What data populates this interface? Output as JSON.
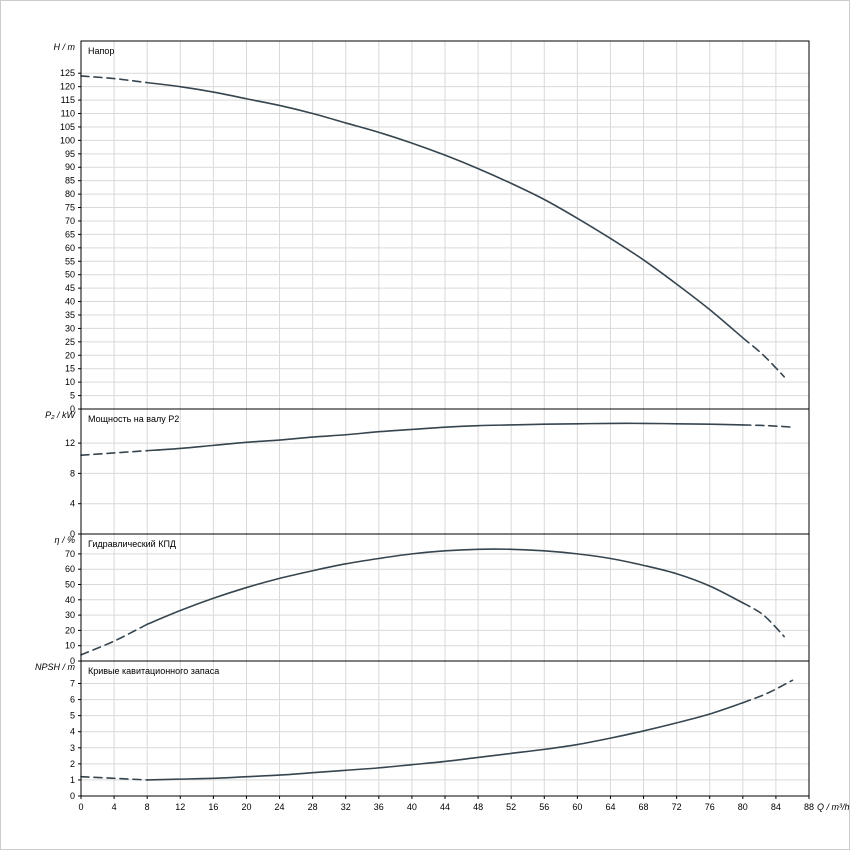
{
  "window": {
    "background": "#ffffff",
    "border_color": "#cccccc"
  },
  "chart_style": {
    "curve_color": "#36454f",
    "grid_color": "#d9d9d9",
    "frame_color": "#000000",
    "text_color": "#000000",
    "font_size": 9
  },
  "x_axis": {
    "label": "Q / m³/h",
    "min": 0,
    "max": 88,
    "tick_step": 4
  },
  "chart_data": [
    {
      "type": "line",
      "panel": "head",
      "title": "Напор",
      "ylabel": "H / m",
      "xlabel": "Q / m³/h",
      "xlim": [
        0,
        88
      ],
      "ylim": [
        0,
        137
      ],
      "yticks": {
        "step": 5,
        "max": 125
      },
      "grid": true,
      "series": [
        {
          "name": "head-curve-dashed-left",
          "style": "dashed",
          "points": [
            [
              0,
              124
            ],
            [
              4,
              123
            ],
            [
              8,
              121.5
            ]
          ]
        },
        {
          "name": "head-curve-solid",
          "style": "solid",
          "points": [
            [
              8,
              121.5
            ],
            [
              12,
              120
            ],
            [
              16,
              118
            ],
            [
              20,
              115.5
            ],
            [
              24,
              113
            ],
            [
              28,
              110
            ],
            [
              32,
              106.5
            ],
            [
              36,
              103
            ],
            [
              40,
              99
            ],
            [
              44,
              94.5
            ],
            [
              48,
              89.5
            ],
            [
              52,
              84
            ],
            [
              56,
              78
            ],
            [
              60,
              71
            ],
            [
              64,
              63.5
            ],
            [
              68,
              55.5
            ],
            [
              72,
              46.5
            ],
            [
              76,
              37
            ],
            [
              80,
              26.5
            ]
          ]
        },
        {
          "name": "head-curve-dashed-right",
          "style": "dashed",
          "points": [
            [
              80,
              26.5
            ],
            [
              82.5,
              20
            ],
            [
              85,
              12
            ]
          ]
        }
      ]
    },
    {
      "type": "line",
      "panel": "shaft-power",
      "title": "Мощность на валу P2",
      "ylabel": "P₂ / kW",
      "xlabel": "Q / m³/h",
      "xlim": [
        0,
        88
      ],
      "ylim": [
        0,
        16.5
      ],
      "yticks": {
        "step": 4,
        "max": 12
      },
      "grid": true,
      "series": [
        {
          "name": "power-curve-dashed-left",
          "style": "dashed",
          "points": [
            [
              0,
              10.4
            ],
            [
              4,
              10.7
            ],
            [
              8,
              11
            ]
          ]
        },
        {
          "name": "power-curve-solid",
          "style": "solid",
          "points": [
            [
              8,
              11
            ],
            [
              12,
              11.3
            ],
            [
              16,
              11.7
            ],
            [
              20,
              12.1
            ],
            [
              24,
              12.4
            ],
            [
              28,
              12.8
            ],
            [
              32,
              13.1
            ],
            [
              36,
              13.5
            ],
            [
              40,
              13.8
            ],
            [
              44,
              14.1
            ],
            [
              48,
              14.3
            ],
            [
              52,
              14.4
            ],
            [
              56,
              14.5
            ],
            [
              60,
              14.55
            ],
            [
              64,
              14.6
            ],
            [
              68,
              14.6
            ],
            [
              72,
              14.55
            ],
            [
              76,
              14.5
            ],
            [
              80,
              14.4
            ]
          ]
        },
        {
          "name": "power-curve-dashed-right",
          "style": "dashed",
          "points": [
            [
              80,
              14.4
            ],
            [
              83,
              14.3
            ],
            [
              86,
              14.1
            ]
          ]
        }
      ]
    },
    {
      "type": "line",
      "panel": "hydraulic-efficiency",
      "title": "Гидравлический КПД",
      "ylabel": "η / %",
      "xlabel": "Q / m³/h",
      "xlim": [
        0,
        88
      ],
      "ylim": [
        0,
        83
      ],
      "yticks": {
        "step": 10,
        "max": 70
      },
      "grid": true,
      "series": [
        {
          "name": "efficiency-curve-dashed-left",
          "style": "dashed",
          "points": [
            [
              0,
              4
            ],
            [
              4,
              13
            ],
            [
              8,
              24
            ]
          ]
        },
        {
          "name": "efficiency-curve-solid",
          "style": "solid",
          "points": [
            [
              8,
              24
            ],
            [
              12,
              33
            ],
            [
              16,
              41
            ],
            [
              20,
              48
            ],
            [
              24,
              54
            ],
            [
              28,
              59
            ],
            [
              32,
              63.5
            ],
            [
              36,
              67
            ],
            [
              40,
              70
            ],
            [
              44,
              72
            ],
            [
              48,
              73
            ],
            [
              52,
              73
            ],
            [
              56,
              72
            ],
            [
              60,
              70
            ],
            [
              64,
              67
            ],
            [
              68,
              62.5
            ],
            [
              72,
              57
            ],
            [
              76,
              49
            ],
            [
              80,
              38
            ]
          ]
        },
        {
          "name": "efficiency-curve-dashed-right",
          "style": "dashed",
          "points": [
            [
              80,
              38
            ],
            [
              82.5,
              30
            ],
            [
              85,
              16
            ]
          ]
        }
      ]
    },
    {
      "type": "line",
      "panel": "npsh",
      "title": "Кривые кавитационного запаса",
      "ylabel": "NPSH / m",
      "xlabel": "Q / m³/h",
      "xlim": [
        0,
        88
      ],
      "ylim": [
        0,
        8.4
      ],
      "yticks": {
        "step": 1,
        "max": 7
      },
      "grid": true,
      "series": [
        {
          "name": "npsh-curve-dashed-left",
          "style": "dashed",
          "points": [
            [
              0,
              1.2
            ],
            [
              4,
              1.1
            ],
            [
              8,
              1
            ]
          ]
        },
        {
          "name": "npsh-curve-solid",
          "style": "solid",
          "points": [
            [
              8,
              1
            ],
            [
              12,
              1.05
            ],
            [
              16,
              1.1
            ],
            [
              20,
              1.2
            ],
            [
              24,
              1.3
            ],
            [
              28,
              1.45
            ],
            [
              32,
              1.6
            ],
            [
              36,
              1.75
            ],
            [
              40,
              1.95
            ],
            [
              44,
              2.15
            ],
            [
              48,
              2.4
            ],
            [
              52,
              2.65
            ],
            [
              56,
              2.9
            ],
            [
              60,
              3.2
            ],
            [
              64,
              3.6
            ],
            [
              68,
              4.05
            ],
            [
              72,
              4.55
            ],
            [
              76,
              5.1
            ],
            [
              80,
              5.8
            ]
          ]
        },
        {
          "name": "npsh-curve-dashed-right",
          "style": "dashed",
          "points": [
            [
              80,
              5.8
            ],
            [
              83,
              6.4
            ],
            [
              86,
              7.2
            ]
          ]
        }
      ]
    }
  ]
}
